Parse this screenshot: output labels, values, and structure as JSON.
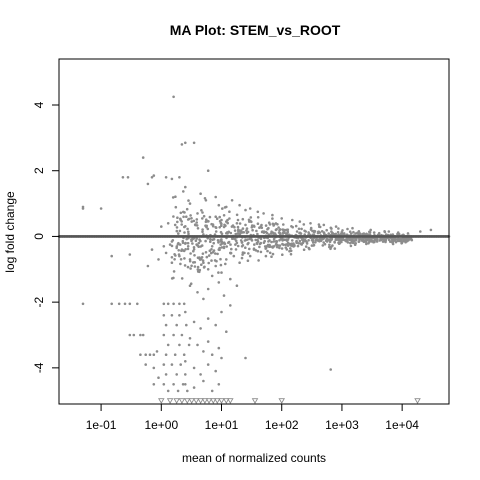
{
  "chart_data": {
    "type": "scatter",
    "title": "MA Plot: STEM_vs_ROOT",
    "xlabel": "mean of normalized counts",
    "ylabel": "log fold change",
    "x_scale": "log10",
    "xlim": [
      0.02,
      60000
    ],
    "ylim": [
      -5.1,
      5.4
    ],
    "x_ticks": [
      0.1,
      1,
      10,
      100,
      1000,
      10000
    ],
    "x_tick_labels": [
      "1e-01",
      "1e+00",
      "1e+01",
      "1e+02",
      "1e+03",
      "1e+04"
    ],
    "y_ticks": [
      -4,
      -2,
      0,
      2,
      4
    ],
    "y_tick_labels": [
      "-4",
      "-2",
      "0",
      "2",
      "4"
    ],
    "hline": {
      "y": 0,
      "color": "#555555"
    },
    "point_color": "#8c8c8c",
    "grid": false,
    "legend": "none",
    "series": [
      {
        "marker": "dot",
        "points": [
          [
            0.05,
            0.85
          ],
          [
            0.05,
            0.9
          ],
          [
            0.1,
            0.85
          ],
          [
            0.23,
            1.8
          ],
          [
            0.28,
            1.8
          ],
          [
            0.5,
            2.4
          ],
          [
            0.75,
            1.85
          ],
          [
            0.7,
            1.8
          ],
          [
            1.6,
            4.25
          ],
          [
            2.5,
            2.85
          ],
          [
            2.2,
            2.8
          ],
          [
            3.5,
            2.85
          ],
          [
            6,
            2.0
          ],
          [
            1.2,
            1.8
          ],
          [
            1.5,
            1.75
          ],
          [
            2.0,
            1.8
          ],
          [
            0.6,
            1.6
          ],
          [
            2.5,
            1.5
          ],
          [
            4.5,
            1.3
          ],
          [
            8,
            1.2
          ],
          [
            3.0,
            1.0
          ],
          [
            5.5,
            1.1
          ],
          [
            9,
            0.95
          ],
          [
            12,
            0.9
          ],
          [
            15,
            1.1
          ],
          [
            20,
            0.95
          ],
          [
            25,
            0.8
          ],
          [
            30,
            0.85
          ],
          [
            40,
            0.75
          ],
          [
            50,
            0.7
          ],
          [
            70,
            0.65
          ],
          [
            100,
            0.55
          ],
          [
            150,
            0.5
          ],
          [
            200,
            0.45
          ],
          [
            300,
            0.4
          ],
          [
            500,
            0.35
          ],
          [
            800,
            0.3
          ],
          [
            1500,
            0.25
          ],
          [
            3000,
            0.2
          ],
          [
            6000,
            0.15
          ],
          [
            20000,
            0.15
          ],
          [
            30000,
            0.2
          ],
          [
            8,
            0.6
          ],
          [
            10,
            0.5
          ],
          [
            12,
            0.45
          ],
          [
            18,
            0.4
          ],
          [
            25,
            0.35
          ],
          [
            35,
            0.3
          ],
          [
            45,
            0.3
          ],
          [
            60,
            0.25
          ],
          [
            80,
            0.2
          ],
          [
            120,
            0.2
          ],
          [
            180,
            0.15
          ],
          [
            250,
            0.15
          ],
          [
            400,
            0.1
          ],
          [
            700,
            0.1
          ],
          [
            1000,
            0.08
          ],
          [
            2000,
            0.06
          ],
          [
            4000,
            0.05
          ],
          [
            7,
            -0.3
          ],
          [
            9,
            -0.4
          ],
          [
            11,
            -0.35
          ],
          [
            14,
            -0.5
          ],
          [
            17,
            -0.25
          ],
          [
            22,
            -0.3
          ],
          [
            28,
            -0.2
          ],
          [
            35,
            -0.25
          ],
          [
            45,
            -0.2
          ],
          [
            60,
            -0.15
          ],
          [
            80,
            -0.15
          ],
          [
            110,
            -0.1
          ],
          [
            150,
            -0.12
          ],
          [
            220,
            -0.1
          ],
          [
            330,
            -0.08
          ],
          [
            500,
            -0.06
          ],
          [
            900,
            -0.05
          ],
          [
            1600,
            -0.05
          ],
          [
            2600,
            -0.04
          ],
          [
            5000,
            -0.03
          ],
          [
            5,
            -0.8
          ],
          [
            6,
            -1.0
          ],
          [
            7,
            -1.2
          ],
          [
            8,
            -0.9
          ],
          [
            10,
            -1.1
          ],
          [
            12,
            -0.7
          ],
          [
            14,
            -1.3
          ],
          [
            16,
            -0.6
          ],
          [
            20,
            -0.8
          ],
          [
            24,
            -0.5
          ],
          [
            30,
            -0.6
          ],
          [
            40,
            -0.45
          ],
          [
            55,
            -0.35
          ],
          [
            75,
            -0.3
          ],
          [
            3,
            -1.5
          ],
          [
            4,
            -1.7
          ],
          [
            5,
            -1.9
          ],
          [
            6,
            -1.6
          ],
          [
            9,
            -1.4
          ],
          [
            11,
            -1.8
          ],
          [
            14,
            -2.1
          ],
          [
            18,
            -1.5
          ],
          [
            2.5,
            -2.3
          ],
          [
            3.5,
            -2.6
          ],
          [
            4.5,
            -2.8
          ],
          [
            6,
            -2.5
          ],
          [
            8,
            -2.7
          ],
          [
            10,
            -2.3
          ],
          [
            12,
            -2.9
          ],
          [
            3,
            -3.1
          ],
          [
            4,
            -3.3
          ],
          [
            5,
            -3.5
          ],
          [
            6,
            -3.2
          ],
          [
            7,
            -3.6
          ],
          [
            9,
            -3.4
          ],
          [
            2.5,
            -3.8
          ],
          [
            3.5,
            -4.0
          ],
          [
            4.5,
            -4.2
          ],
          [
            6,
            -3.9
          ],
          [
            8,
            -4.1
          ],
          [
            10,
            -3.7
          ],
          [
            2.5,
            -4.5
          ],
          [
            3.5,
            -4.6
          ],
          [
            5,
            -4.4
          ],
          [
            7,
            -4.7
          ],
          [
            9,
            -4.5
          ],
          [
            0.05,
            -2.05
          ],
          [
            0.15,
            -2.05
          ],
          [
            0.2,
            -2.05
          ],
          [
            0.25,
            -2.05
          ],
          [
            0.3,
            -2.05
          ],
          [
            0.4,
            -2.05
          ],
          [
            0.3,
            -3.0
          ],
          [
            0.35,
            -3.0
          ],
          [
            0.45,
            -3.0
          ],
          [
            0.5,
            -3.0
          ],
          [
            0.45,
            -3.6
          ],
          [
            0.55,
            -3.6
          ],
          [
            0.65,
            -3.6
          ],
          [
            0.75,
            -3.6
          ],
          [
            0.85,
            -3.5
          ],
          [
            0.55,
            -3.9
          ],
          [
            0.75,
            -4.0
          ],
          [
            0.75,
            -4.5
          ],
          [
            0.9,
            -4.3
          ],
          [
            0.15,
            -0.6
          ],
          [
            0.3,
            -0.55
          ],
          [
            0.6,
            -0.9
          ],
          [
            0.7,
            -0.4
          ],
          [
            0.9,
            -0.7
          ],
          [
            1.2,
            -0.5
          ],
          [
            1.5,
            -0.8
          ],
          [
            2.0,
            -0.6
          ],
          [
            25,
            -3.7
          ],
          [
            650,
            -4.05
          ],
          [
            1.1,
            -2.05
          ],
          [
            1.3,
            -2.05
          ],
          [
            1.6,
            -2.05
          ],
          [
            2.0,
            -2.05
          ],
          [
            2.4,
            -2.05
          ],
          [
            1.1,
            -2.4
          ],
          [
            1.5,
            -2.4
          ],
          [
            2.0,
            -2.4
          ],
          [
            1.2,
            -2.7
          ],
          [
            1.8,
            -2.7
          ],
          [
            2.6,
            -2.7
          ],
          [
            1.1,
            -3.0
          ],
          [
            1.6,
            -3.0
          ],
          [
            2.2,
            -3.0
          ],
          [
            1.3,
            -3.3
          ],
          [
            2.0,
            -3.3
          ],
          [
            2.9,
            -3.3
          ],
          [
            1.2,
            -3.6
          ],
          [
            1.7,
            -3.6
          ],
          [
            2.4,
            -3.6
          ],
          [
            1.1,
            -3.9
          ],
          [
            1.5,
            -3.9
          ],
          [
            2.1,
            -3.9
          ],
          [
            1.2,
            -4.2
          ],
          [
            1.8,
            -4.2
          ],
          [
            2.5,
            -4.2
          ],
          [
            1.1,
            -4.5
          ],
          [
            1.6,
            -4.5
          ],
          [
            2.3,
            -4.5
          ],
          [
            1.3,
            -4.7
          ],
          [
            1.9,
            -4.7
          ],
          [
            2.7,
            -4.7
          ],
          [
            1.1,
            -0.3
          ],
          [
            1.4,
            -0.25
          ],
          [
            1.8,
            -0.35
          ],
          [
            2.2,
            -0.4
          ],
          [
            2.8,
            -0.3
          ],
          [
            3.4,
            -0.45
          ],
          [
            4.2,
            -0.2
          ],
          [
            1.0,
            0.3
          ],
          [
            1.3,
            0.4
          ],
          [
            1.7,
            0.35
          ],
          [
            2.1,
            0.5
          ],
          [
            2.6,
            0.6
          ],
          [
            3.2,
            0.45
          ],
          [
            4.0,
            0.7
          ],
          [
            4.8,
            0.55
          ]
        ]
      },
      {
        "marker": "triangle-down",
        "points": [
          [
            1.0,
            -5.0
          ],
          [
            1.4,
            -5.0
          ],
          [
            1.8,
            -5.0
          ],
          [
            2.2,
            -5.0
          ],
          [
            2.7,
            -5.0
          ],
          [
            3.2,
            -5.0
          ],
          [
            3.8,
            -5.0
          ],
          [
            4.5,
            -5.0
          ],
          [
            5.3,
            -5.0
          ],
          [
            6.2,
            -5.0
          ],
          [
            7.3,
            -5.0
          ],
          [
            8.5,
            -5.0
          ],
          [
            10,
            -5.0
          ],
          [
            12,
            -5.0
          ],
          [
            14,
            -5.0
          ],
          [
            36,
            -5.0
          ],
          [
            100,
            -5.0
          ],
          [
            18000,
            -5.0
          ]
        ]
      }
    ],
    "zero_row_x_range": [
      0.02,
      60000
    ],
    "band": {
      "x_start": 1.5,
      "x_end": 15000,
      "description_hidden": true
    }
  }
}
